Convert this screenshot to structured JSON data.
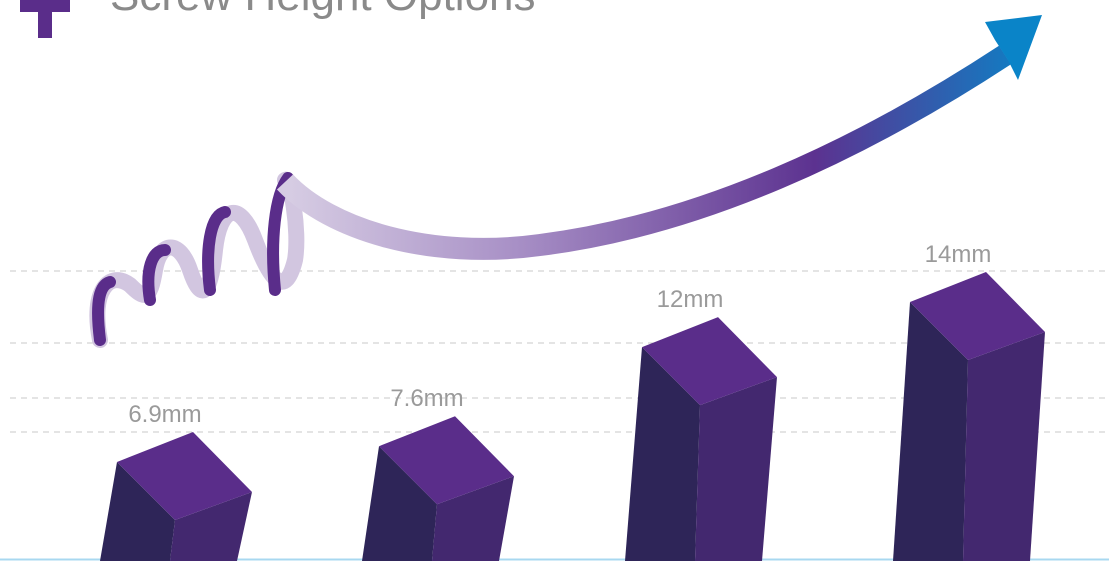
{
  "chart_data": {
    "type": "bar3d",
    "title": "Screw Height Options",
    "categories": [
      null,
      null,
      null,
      null
    ],
    "values": [
      6.9,
      7.6,
      12,
      14
    ],
    "value_labels": [
      "6.9mm",
      "7.6mm",
      "12mm",
      "14mm"
    ],
    "color": "#5a2d8a"
  }
}
